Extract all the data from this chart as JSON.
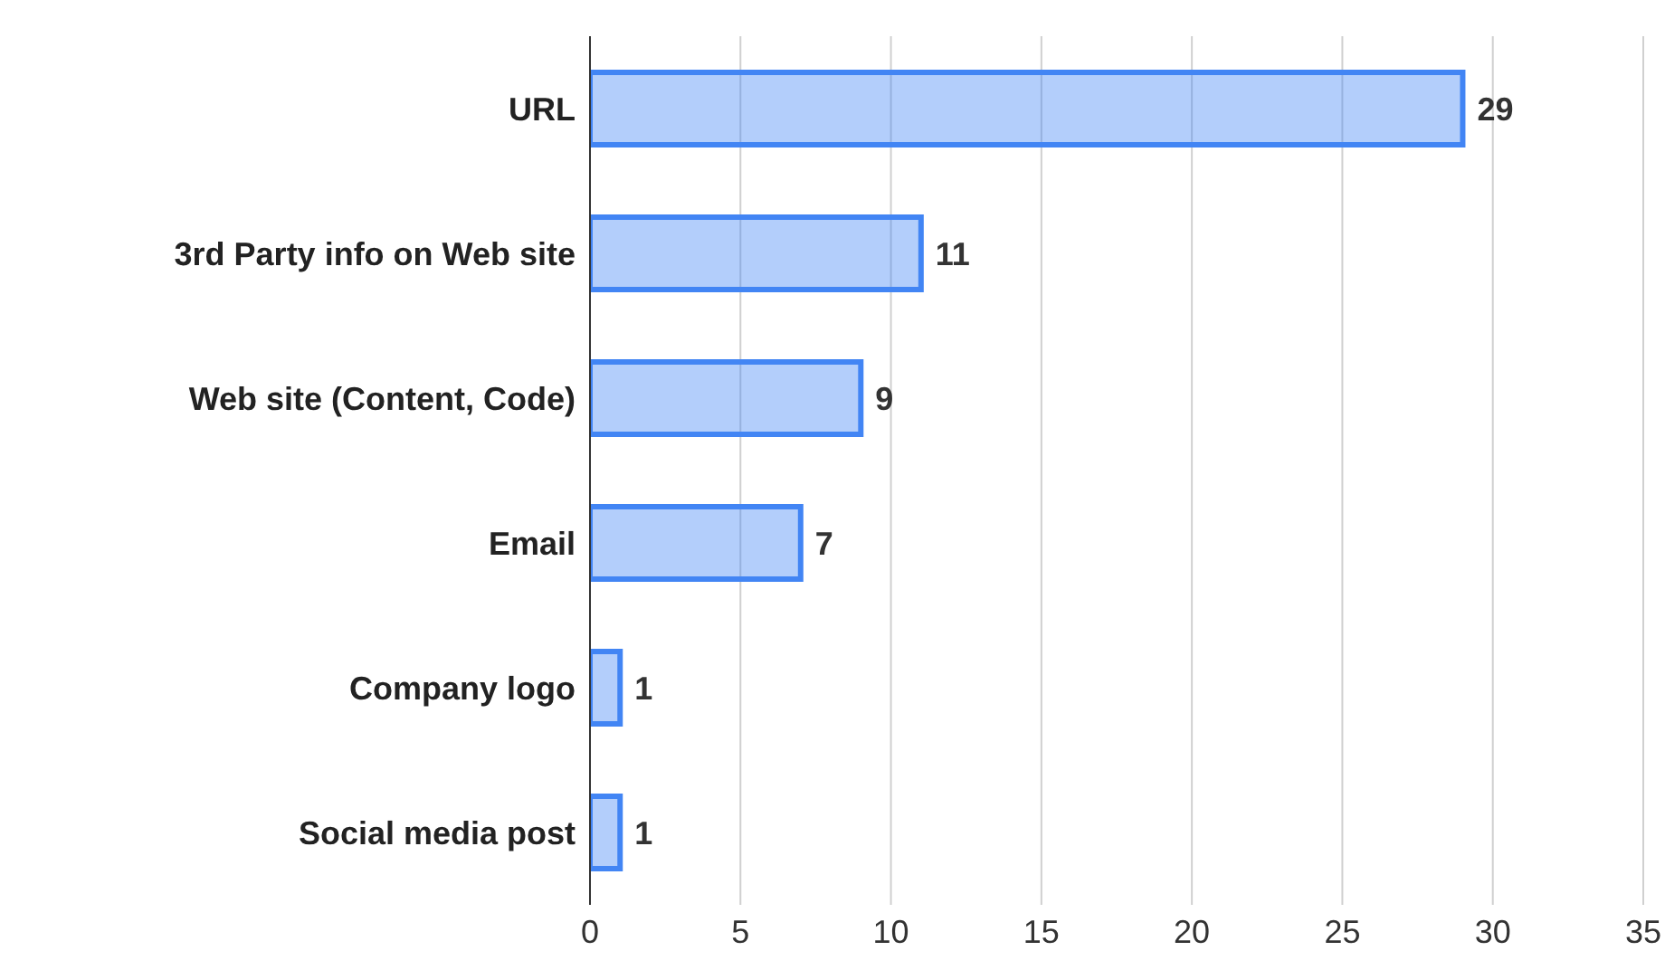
{
  "chart_data": {
    "type": "bar",
    "orientation": "horizontal",
    "categories": [
      "URL",
      "3rd Party info on Web site",
      "Web site (Content, Code)",
      "Email",
      "Company logo",
      "Social media post"
    ],
    "values": [
      29,
      11,
      9,
      7,
      1,
      1
    ],
    "color": "#4285f4",
    "xlim": [
      0,
      35
    ],
    "xticks": [
      0,
      5,
      10,
      15,
      20,
      25,
      30,
      35
    ],
    "grid": "x",
    "data_labels": true
  }
}
